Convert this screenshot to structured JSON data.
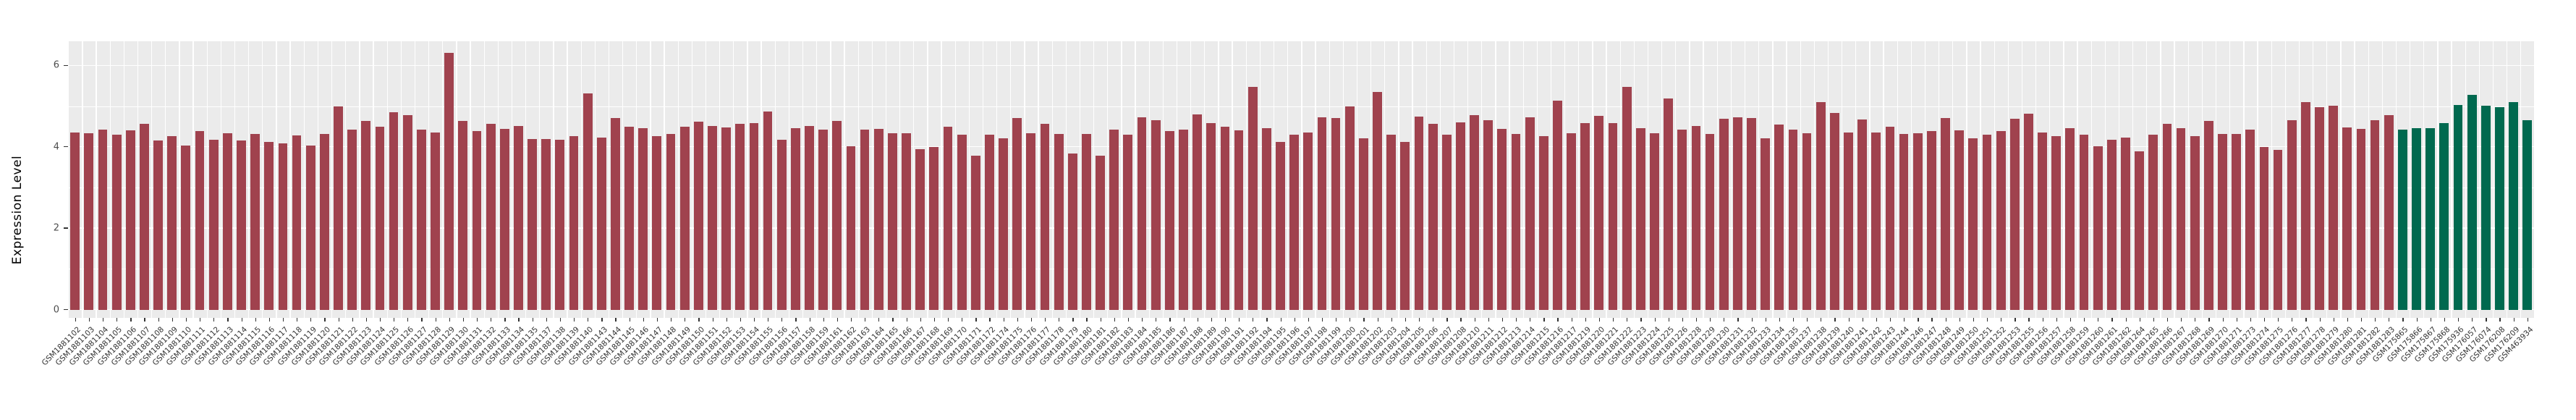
{
  "chart_data": {
    "type": "bar",
    "title": "",
    "xlabel": "",
    "ylabel": "Expression Level",
    "ylim": [
      0,
      6.59
    ],
    "yticks": [
      0,
      2,
      4,
      6
    ],
    "grid": true,
    "legend_position": "none",
    "categories": [
      "GSM1881102",
      "GSM1881103",
      "GSM1881104",
      "GSM1881105",
      "GSM1881106",
      "GSM1881107",
      "GSM1881108",
      "GSM1881109",
      "GSM1881110",
      "GSM1881111",
      "GSM1881112",
      "GSM1881113",
      "GSM1881114",
      "GSM1881115",
      "GSM1881116",
      "GSM1881117",
      "GSM1881118",
      "GSM1881119",
      "GSM1881120",
      "GSM1881121",
      "GSM1881122",
      "GSM1881123",
      "GSM1881124",
      "GSM1881125",
      "GSM1881126",
      "GSM1881127",
      "GSM1881128",
      "GSM1881129",
      "GSM1881130",
      "GSM1881131",
      "GSM1881132",
      "GSM1881133",
      "GSM1881134",
      "GSM1881135",
      "GSM1881137",
      "GSM1881138",
      "GSM1881139",
      "GSM1881140",
      "GSM1881143",
      "GSM1881144",
      "GSM1881145",
      "GSM1881146",
      "GSM1881147",
      "GSM1881148",
      "GSM1881149",
      "GSM1881150",
      "GSM1881151",
      "GSM1881152",
      "GSM1881153",
      "GSM1881154",
      "GSM1881155",
      "GSM1881156",
      "GSM1881157",
      "GSM1881158",
      "GSM1881159",
      "GSM1881161",
      "GSM1881162",
      "GSM1881163",
      "GSM1881164",
      "GSM1881165",
      "GSM1881166",
      "GSM1881167",
      "GSM1881168",
      "GSM1881169",
      "GSM1881170",
      "GSM1881171",
      "GSM1881172",
      "GSM1881174",
      "GSM1881175",
      "GSM1881176",
      "GSM1881177",
      "GSM1881178",
      "GSM1881179",
      "GSM1881180",
      "GSM1881181",
      "GSM1881182",
      "GSM1881183",
      "GSM1881184",
      "GSM1881185",
      "GSM1881186",
      "GSM1881187",
      "GSM1881188",
      "GSM1881189",
      "GSM1881190",
      "GSM1881191",
      "GSM1881192",
      "GSM1881194",
      "GSM1881195",
      "GSM1881196",
      "GSM1881197",
      "GSM1881198",
      "GSM1881199",
      "GSM1881200",
      "GSM1881201",
      "GSM1881202",
      "GSM1881203",
      "GSM1881204",
      "GSM1881205",
      "GSM1881206",
      "GSM1881207",
      "GSM1881208",
      "GSM1881210",
      "GSM1881211",
      "GSM1881212",
      "GSM1881213",
      "GSM1881214",
      "GSM1881215",
      "GSM1881216",
      "GSM1881217",
      "GSM1881219",
      "GSM1881220",
      "GSM1881221",
      "GSM1881222",
      "GSM1881223",
      "GSM1881224",
      "GSM1881225",
      "GSM1881226",
      "GSM1881228",
      "GSM1881229",
      "GSM1881230",
      "GSM1881231",
      "GSM1881232",
      "GSM1881233",
      "GSM1881234",
      "GSM1881235",
      "GSM1881237",
      "GSM1881238",
      "GSM1881239",
      "GSM1881240",
      "GSM1881241",
      "GSM1881242",
      "GSM1881243",
      "GSM1881244",
      "GSM1881246",
      "GSM1881247",
      "GSM1881248",
      "GSM1881249",
      "GSM1881250",
      "GSM1881251",
      "GSM1881252",
      "GSM1881253",
      "GSM1881255",
      "GSM1881256",
      "GSM1881257",
      "GSM1881258",
      "GSM1881259",
      "GSM1881260",
      "GSM1881261",
      "GSM1881262",
      "GSM1881264",
      "GSM1881265",
      "GSM1881266",
      "GSM1881267",
      "GSM1881268",
      "GSM1881269",
      "GSM1881270",
      "GSM1881271",
      "GSM1881273",
      "GSM1881274",
      "GSM1881275",
      "GSM1881276",
      "GSM1881277",
      "GSM1881278",
      "GSM1881279",
      "GSM1881280",
      "GSM1881281",
      "GSM1881282",
      "GSM1881283",
      "GSM175865",
      "GSM175866",
      "GSM175867",
      "GSM175868",
      "GSM175936",
      "GSM176057",
      "GSM176074",
      "GSM176208",
      "GSM176209",
      "GSM463934"
    ],
    "values": [
      4.36,
      4.33,
      4.43,
      4.3,
      4.4,
      4.56,
      4.15,
      4.27,
      4.04,
      4.39,
      4.18,
      4.33,
      4.16,
      4.32,
      4.12,
      4.09,
      4.28,
      4.03,
      4.31,
      4.99,
      4.43,
      4.63,
      4.49,
      4.85,
      4.78,
      4.42,
      4.36,
      6.3,
      4.64,
      4.39,
      4.56,
      4.44,
      4.51,
      4.2,
      4.2,
      4.18,
      4.27,
      5.31,
      4.23,
      4.71,
      4.5,
      4.46,
      4.27,
      4.32,
      4.49,
      4.61,
      4.52,
      4.48,
      4.56,
      4.58,
      4.87,
      4.18,
      4.46,
      4.51,
      4.42,
      4.64,
      4.01,
      4.42,
      4.44,
      4.34,
      4.34,
      3.95,
      4.0,
      4.5,
      4.3,
      3.78,
      4.3,
      4.21,
      4.7,
      4.34,
      4.56,
      4.32,
      3.84,
      4.32,
      3.78,
      4.43,
      4.3,
      4.72,
      4.66,
      4.39,
      4.43,
      4.8,
      4.59,
      4.5,
      4.4,
      5.47,
      4.46,
      4.12,
      4.3,
      4.36,
      4.72,
      4.7,
      4.99,
      4.21,
      5.35,
      4.3,
      4.12,
      4.74,
      4.56,
      4.3,
      4.6,
      4.78,
      4.65,
      4.44,
      4.32,
      4.72,
      4.26,
      5.13,
      4.33,
      4.58,
      4.76,
      4.58,
      5.47,
      4.46,
      4.34,
      5.19,
      4.42,
      4.51,
      4.31,
      4.69,
      4.72,
      4.7,
      4.21,
      4.55,
      4.42,
      4.33,
      5.1,
      4.83,
      4.36,
      4.67,
      4.35,
      4.49,
      4.31,
      4.33,
      4.39,
      4.71,
      4.4,
      4.21,
      4.3,
      4.38,
      4.69,
      4.81,
      4.36,
      4.26,
      4.46,
      4.3,
      4.02,
      4.17,
      4.23,
      3.89,
      4.3,
      4.56,
      4.46,
      4.26,
      4.64,
      4.31,
      4.31,
      4.42,
      3.99,
      3.92,
      4.66,
      5.1,
      4.98,
      5.01,
      4.48,
      4.44,
      4.66,
      4.78,
      4.42,
      4.45,
      4.45,
      4.58,
      5.03,
      5.28,
      5.01,
      4.97,
      5.1,
      4.65
    ],
    "bar_groups": [
      {
        "color": "#A0424E",
        "start": 0,
        "end": 167
      },
      {
        "color": "#00694F",
        "start": 168,
        "end": 177
      }
    ]
  },
  "colors": {
    "panel_background": "#EBEBEB",
    "gridline": "#FFFFFF",
    "axis_text": "#4d4d4d",
    "axis_title": "#000000",
    "tick_mark": "#333333"
  }
}
